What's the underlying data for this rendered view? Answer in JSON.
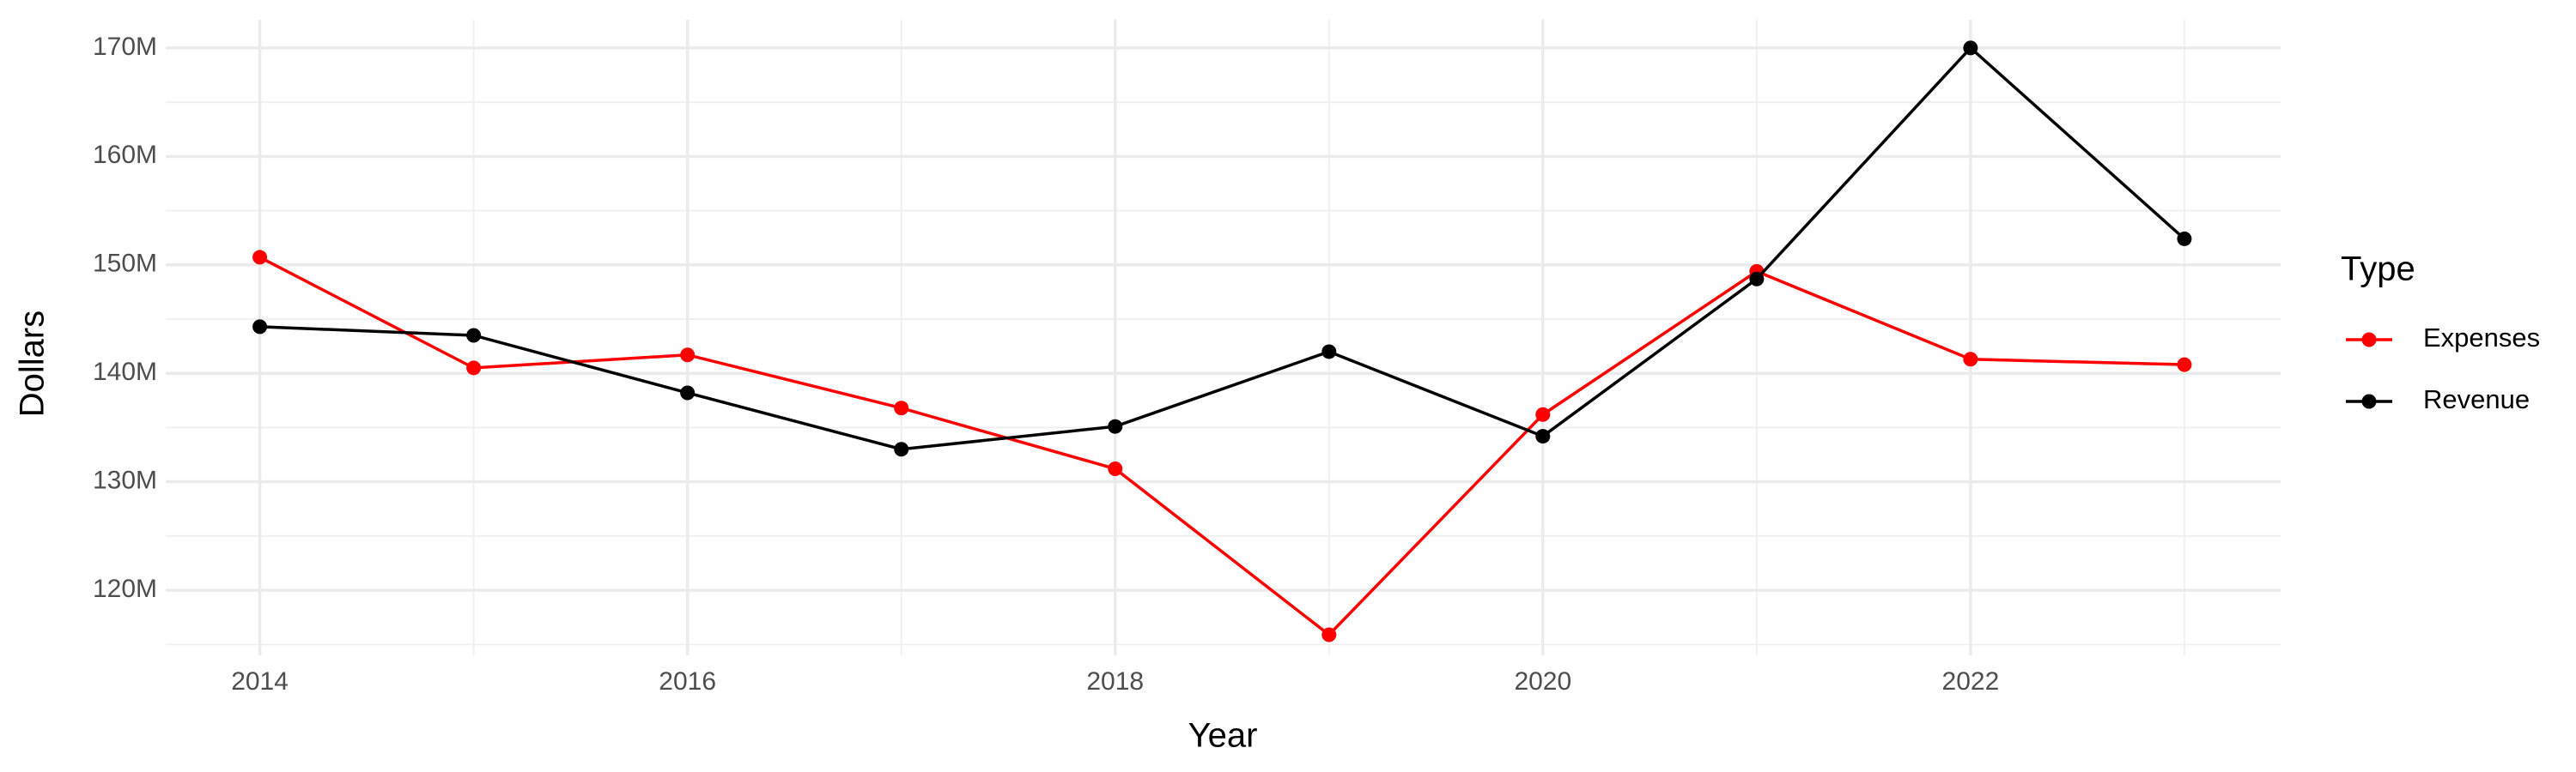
{
  "chart_data": {
    "type": "line",
    "x_label": "Year",
    "y_label": "Dollars",
    "x": [
      2014,
      2015,
      2016,
      2017,
      2018,
      2019,
      2020,
      2021,
      2022,
      2023
    ],
    "series": [
      {
        "name": "Expenses",
        "color": "#ff0000",
        "values": [
          150700000,
          140500000,
          141700000,
          136800000,
          131200000,
          115900000,
          136200000,
          149400000,
          141300000,
          140800000
        ]
      },
      {
        "name": "Revenue",
        "color": "#000000",
        "values": [
          144300000,
          143500000,
          138200000,
          133000000,
          135100000,
          142000000,
          134200000,
          148700000,
          170000000,
          152400000
        ]
      }
    ],
    "xlim": [
      2013.56,
      2023.45
    ],
    "xticks": [
      2014,
      2016,
      2018,
      2020,
      2022
    ],
    "ylim": [
      114000000,
      172600000
    ],
    "yticks": [
      {
        "value": 120000000,
        "label": "120M"
      },
      {
        "value": 130000000,
        "label": "130M"
      },
      {
        "value": 140000000,
        "label": "140M"
      },
      {
        "value": 150000000,
        "label": "150M"
      },
      {
        "value": 160000000,
        "label": "160M"
      },
      {
        "value": 170000000,
        "label": "170M"
      }
    ],
    "legend_title": "Type",
    "legend_position": "right",
    "grid": true
  }
}
